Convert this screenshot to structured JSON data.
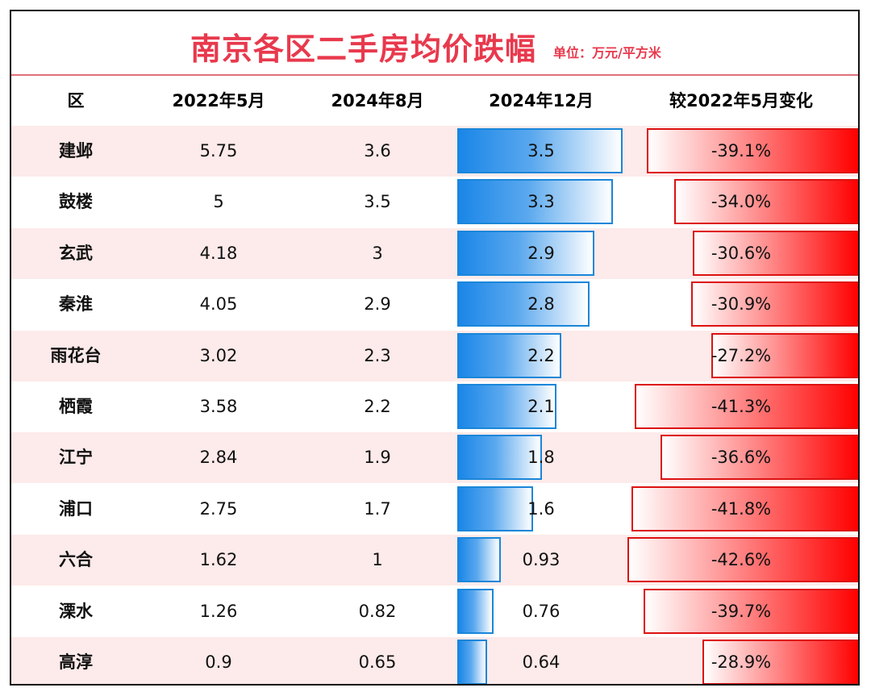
{
  "title": "南京各区二手房均价跌幅",
  "unit": "单位：万元/平方米",
  "colors": {
    "title": "#e8394d",
    "blue_bar": "#1a86e8",
    "red_bar": "#ff0000",
    "stripe": "#fdeaea"
  },
  "chart_data": {
    "type": "table",
    "columns": [
      "区",
      "2022年5月",
      "2024年8月",
      "2024年12月",
      "较2022年5月变化"
    ],
    "rows": [
      {
        "district": "建邺",
        "may2022": "5.75",
        "aug2024": "3.6",
        "dec2024": "3.5",
        "change": "-39.1%",
        "dec2024_value": 3.5,
        "change_value": -39.1
      },
      {
        "district": "鼓楼",
        "may2022": "5",
        "aug2024": "3.5",
        "dec2024": "3.3",
        "change": "-34.0%",
        "dec2024_value": 3.3,
        "change_value": -34.0
      },
      {
        "district": "玄武",
        "may2022": "4.18",
        "aug2024": "3",
        "dec2024": "2.9",
        "change": "-30.6%",
        "dec2024_value": 2.9,
        "change_value": -30.6
      },
      {
        "district": "秦淮",
        "may2022": "4.05",
        "aug2024": "2.9",
        "dec2024": "2.8",
        "change": "-30.9%",
        "dec2024_value": 2.8,
        "change_value": -30.9
      },
      {
        "district": "雨花台",
        "may2022": "3.02",
        "aug2024": "2.3",
        "dec2024": "2.2",
        "change": "-27.2%",
        "dec2024_value": 2.2,
        "change_value": -27.2
      },
      {
        "district": "栖霞",
        "may2022": "3.58",
        "aug2024": "2.2",
        "dec2024": "2.1",
        "change": "-41.3%",
        "dec2024_value": 2.1,
        "change_value": -41.3
      },
      {
        "district": "江宁",
        "may2022": "2.84",
        "aug2024": "1.9",
        "dec2024": "1.8",
        "change": "-36.6%",
        "dec2024_value": 1.8,
        "change_value": -36.6
      },
      {
        "district": "浦口",
        "may2022": "2.75",
        "aug2024": "1.7",
        "dec2024": "1.6",
        "change": "-41.8%",
        "dec2024_value": 1.6,
        "change_value": -41.8
      },
      {
        "district": "六合",
        "may2022": "1.62",
        "aug2024": "1",
        "dec2024": "0.93",
        "change": "-42.6%",
        "dec2024_value": 0.93,
        "change_value": -42.6
      },
      {
        "district": "溧水",
        "may2022": "1.26",
        "aug2024": "0.82",
        "dec2024": "0.76",
        "change": "-39.7%",
        "dec2024_value": 0.76,
        "change_value": -39.7
      },
      {
        "district": "高淳",
        "may2022": "0.9",
        "aug2024": "0.65",
        "dec2024": "0.64",
        "change": "-28.9%",
        "dec2024_value": 0.64,
        "change_value": -28.9
      }
    ]
  }
}
